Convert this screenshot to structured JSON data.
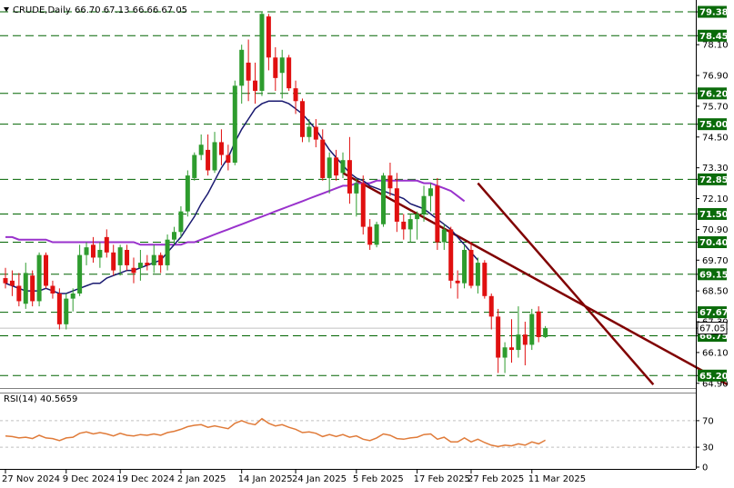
{
  "header": {
    "symbol": "CRUDE,Daily",
    "ohlc": "66.70 67.13 66.66 67.05"
  },
  "rsi_header": "RSI(14) 40.5659",
  "colors": {
    "bull": "#2e9c2e",
    "bear": "#e01010",
    "level_line": "#006400",
    "level_label_bg": "#0a6b0a",
    "last_label_bg": "#ffffff",
    "sma_fast": "#191970",
    "sma_slow": "#9932cc",
    "channel": "#800000",
    "rsi_line": "#e07b39",
    "grid": "#c0c0c0"
  },
  "chart_data": [
    {
      "type": "candlestick",
      "y_axis_ticks": [
        "79.38",
        "78.45",
        "78.10",
        "76.90",
        "76.20",
        "75.70",
        "75.00",
        "74.50",
        "73.30",
        "72.85",
        "72.10",
        "71.50",
        "70.90",
        "70.40",
        "69.70",
        "69.15",
        "68.50",
        "67.67",
        "67.30",
        "67.05",
        "66.75",
        "66.10",
        "65.20",
        "64.90"
      ],
      "ylim": [
        64.75,
        79.7
      ],
      "x_tick_labels": [
        "27 Nov 2024",
        "9 Dec 2024",
        "19 Dec 2024",
        "2 Jan 2025",
        "14 Jan 2025",
        "24 Jan 2025",
        "5 Feb 2025",
        "17 Feb 2025",
        "27 Feb 2025",
        "11 Mar 2025"
      ],
      "x_tick_bar_index": [
        0,
        9,
        17,
        26,
        35,
        43,
        52,
        61,
        69,
        78
      ],
      "horizontal_levels": [
        "79.38",
        "78.45",
        "76.20",
        "75.00",
        "72.85",
        "71.50",
        "70.40",
        "69.15",
        "67.67",
        "66.75",
        "65.20"
      ],
      "last_price": "67.05",
      "candles": [
        {
          "o": 69.0,
          "h": 69.4,
          "l": 68.6,
          "c": 68.8
        },
        {
          "o": 68.9,
          "h": 69.3,
          "l": 68.3,
          "c": 68.7
        },
        {
          "o": 68.7,
          "h": 69.2,
          "l": 67.9,
          "c": 68.1
        },
        {
          "o": 68.0,
          "h": 69.6,
          "l": 67.8,
          "c": 69.2
        },
        {
          "o": 69.1,
          "h": 69.3,
          "l": 67.9,
          "c": 68.1
        },
        {
          "o": 68.1,
          "h": 70.0,
          "l": 67.9,
          "c": 69.9
        },
        {
          "o": 69.9,
          "h": 70.0,
          "l": 68.6,
          "c": 68.7
        },
        {
          "o": 68.7,
          "h": 68.9,
          "l": 68.2,
          "c": 68.4
        },
        {
          "o": 68.4,
          "h": 68.6,
          "l": 67.0,
          "c": 67.2
        },
        {
          "o": 67.2,
          "h": 68.4,
          "l": 67.0,
          "c": 68.2
        },
        {
          "o": 68.2,
          "h": 68.6,
          "l": 67.7,
          "c": 68.4
        },
        {
          "o": 68.4,
          "h": 70.3,
          "l": 68.3,
          "c": 69.9
        },
        {
          "o": 69.9,
          "h": 70.4,
          "l": 69.5,
          "c": 70.2
        },
        {
          "o": 70.3,
          "h": 70.6,
          "l": 69.6,
          "c": 69.8
        },
        {
          "o": 69.8,
          "h": 70.4,
          "l": 69.4,
          "c": 70.1
        },
        {
          "o": 70.6,
          "h": 70.9,
          "l": 69.8,
          "c": 70.0
        },
        {
          "o": 70.0,
          "h": 70.3,
          "l": 69.1,
          "c": 69.3
        },
        {
          "o": 69.5,
          "h": 70.3,
          "l": 69.1,
          "c": 70.2
        },
        {
          "o": 70.1,
          "h": 70.3,
          "l": 69.3,
          "c": 69.5
        },
        {
          "o": 69.4,
          "h": 69.8,
          "l": 68.8,
          "c": 69.2
        },
        {
          "o": 69.4,
          "h": 70.1,
          "l": 68.9,
          "c": 69.6
        },
        {
          "o": 69.6,
          "h": 69.9,
          "l": 69.3,
          "c": 69.5
        },
        {
          "o": 69.5,
          "h": 70.3,
          "l": 69.2,
          "c": 69.9
        },
        {
          "o": 69.9,
          "h": 70.0,
          "l": 69.2,
          "c": 69.5
        },
        {
          "o": 69.5,
          "h": 70.7,
          "l": 69.3,
          "c": 70.5
        },
        {
          "o": 70.5,
          "h": 71.0,
          "l": 70.3,
          "c": 70.8
        },
        {
          "o": 70.8,
          "h": 71.8,
          "l": 70.6,
          "c": 71.6
        },
        {
          "o": 71.6,
          "h": 73.2,
          "l": 71.4,
          "c": 73.0
        },
        {
          "o": 72.9,
          "h": 73.9,
          "l": 72.8,
          "c": 73.8
        },
        {
          "o": 73.8,
          "h": 74.6,
          "l": 73.6,
          "c": 74.2
        },
        {
          "o": 74.0,
          "h": 74.6,
          "l": 73.0,
          "c": 73.2
        },
        {
          "o": 73.2,
          "h": 74.7,
          "l": 73.1,
          "c": 74.3
        },
        {
          "o": 74.3,
          "h": 74.8,
          "l": 73.4,
          "c": 73.8
        },
        {
          "o": 73.8,
          "h": 74.2,
          "l": 73.2,
          "c": 73.5
        },
        {
          "o": 73.5,
          "h": 76.7,
          "l": 73.4,
          "c": 76.5
        },
        {
          "o": 76.5,
          "h": 78.1,
          "l": 75.8,
          "c": 77.9
        },
        {
          "o": 77.4,
          "h": 78.3,
          "l": 75.9,
          "c": 76.7
        },
        {
          "o": 76.7,
          "h": 77.4,
          "l": 75.8,
          "c": 76.3
        },
        {
          "o": 76.3,
          "h": 79.4,
          "l": 76.1,
          "c": 79.3
        },
        {
          "o": 79.2,
          "h": 79.3,
          "l": 77.1,
          "c": 77.6
        },
        {
          "o": 77.6,
          "h": 78.0,
          "l": 76.3,
          "c": 76.8
        },
        {
          "o": 77.0,
          "h": 77.9,
          "l": 76.0,
          "c": 77.6
        },
        {
          "o": 77.6,
          "h": 77.7,
          "l": 76.3,
          "c": 76.4
        },
        {
          "o": 76.4,
          "h": 76.7,
          "l": 75.4,
          "c": 75.9
        },
        {
          "o": 75.9,
          "h": 76.0,
          "l": 74.3,
          "c": 74.5
        },
        {
          "o": 74.5,
          "h": 75.2,
          "l": 74.3,
          "c": 74.9
        },
        {
          "o": 74.9,
          "h": 75.2,
          "l": 74.1,
          "c": 74.4
        },
        {
          "o": 74.4,
          "h": 74.8,
          "l": 72.8,
          "c": 72.9
        },
        {
          "o": 72.9,
          "h": 73.9,
          "l": 72.3,
          "c": 73.7
        },
        {
          "o": 73.7,
          "h": 74.0,
          "l": 72.8,
          "c": 73.0
        },
        {
          "o": 73.1,
          "h": 73.9,
          "l": 72.9,
          "c": 73.6
        },
        {
          "o": 73.6,
          "h": 74.5,
          "l": 71.9,
          "c": 72.3
        },
        {
          "o": 72.3,
          "h": 72.9,
          "l": 71.4,
          "c": 72.7
        },
        {
          "o": 72.7,
          "h": 73.0,
          "l": 70.7,
          "c": 71.0
        },
        {
          "o": 71.0,
          "h": 71.3,
          "l": 70.1,
          "c": 70.3
        },
        {
          "o": 70.3,
          "h": 71.2,
          "l": 70.2,
          "c": 71.1
        },
        {
          "o": 71.1,
          "h": 73.1,
          "l": 71.0,
          "c": 73.0
        },
        {
          "o": 73.0,
          "h": 73.5,
          "l": 72.2,
          "c": 72.5
        },
        {
          "o": 72.5,
          "h": 73.1,
          "l": 70.8,
          "c": 71.2
        },
        {
          "o": 71.2,
          "h": 71.5,
          "l": 70.5,
          "c": 70.9
        },
        {
          "o": 70.9,
          "h": 71.5,
          "l": 70.4,
          "c": 71.3
        },
        {
          "o": 71.3,
          "h": 71.6,
          "l": 70.5,
          "c": 71.5
        },
        {
          "o": 71.5,
          "h": 72.6,
          "l": 71.2,
          "c": 72.2
        },
        {
          "o": 72.2,
          "h": 72.7,
          "l": 71.6,
          "c": 72.5
        },
        {
          "o": 72.6,
          "h": 72.9,
          "l": 70.1,
          "c": 70.4
        },
        {
          "o": 70.4,
          "h": 71.1,
          "l": 70.1,
          "c": 70.9
        },
        {
          "o": 70.9,
          "h": 71.0,
          "l": 68.6,
          "c": 68.9
        },
        {
          "o": 68.9,
          "h": 69.3,
          "l": 68.2,
          "c": 68.8
        },
        {
          "o": 68.8,
          "h": 70.3,
          "l": 68.6,
          "c": 70.1
        },
        {
          "o": 70.1,
          "h": 70.4,
          "l": 68.6,
          "c": 68.7
        },
        {
          "o": 68.7,
          "h": 69.8,
          "l": 68.4,
          "c": 69.6
        },
        {
          "o": 69.6,
          "h": 69.7,
          "l": 68.2,
          "c": 68.3
        },
        {
          "o": 68.3,
          "h": 68.4,
          "l": 67.0,
          "c": 67.5
        },
        {
          "o": 67.5,
          "h": 67.8,
          "l": 65.3,
          "c": 65.9
        },
        {
          "o": 65.9,
          "h": 66.5,
          "l": 65.3,
          "c": 66.3
        },
        {
          "o": 66.3,
          "h": 67.4,
          "l": 65.7,
          "c": 66.2
        },
        {
          "o": 66.2,
          "h": 67.9,
          "l": 65.9,
          "c": 66.8
        },
        {
          "o": 66.8,
          "h": 67.3,
          "l": 65.6,
          "c": 66.4
        },
        {
          "o": 66.4,
          "h": 67.8,
          "l": 66.2,
          "c": 67.6
        },
        {
          "o": 67.7,
          "h": 67.9,
          "l": 66.5,
          "c": 66.7
        },
        {
          "o": 66.7,
          "h": 67.13,
          "l": 66.66,
          "c": 67.05
        }
      ],
      "sma_fast": [
        68.8,
        68.7,
        68.6,
        68.5,
        68.5,
        68.5,
        68.6,
        68.5,
        68.4,
        68.4,
        68.5,
        68.6,
        68.7,
        68.8,
        68.8,
        69.0,
        69.1,
        69.2,
        69.3,
        69.3,
        69.4,
        69.5,
        69.6,
        69.7,
        70.0,
        70.3,
        70.6,
        71.0,
        71.4,
        71.9,
        72.3,
        72.8,
        73.3,
        73.7,
        74.3,
        74.8,
        75.2,
        75.6,
        75.8,
        75.9,
        75.9,
        75.9,
        75.8,
        75.6,
        75.4,
        75.1,
        74.8,
        74.4,
        74.0,
        73.7,
        73.4,
        73.1,
        72.9,
        72.8,
        72.6,
        72.5,
        72.4,
        72.3,
        72.2,
        72.1,
        71.9,
        71.8,
        71.7,
        71.5,
        71.3,
        71.1,
        70.9,
        70.6,
        70.3,
        70.0,
        69.7
      ],
      "sma_slow": [
        70.6,
        70.6,
        70.5,
        70.5,
        70.5,
        70.5,
        70.5,
        70.4,
        70.4,
        70.4,
        70.4,
        70.4,
        70.4,
        70.4,
        70.4,
        70.4,
        70.4,
        70.4,
        70.4,
        70.4,
        70.3,
        70.3,
        70.3,
        70.3,
        70.3,
        70.3,
        70.3,
        70.4,
        70.4,
        70.5,
        70.6,
        70.7,
        70.8,
        70.9,
        71.0,
        71.1,
        71.2,
        71.3,
        71.4,
        71.5,
        71.6,
        71.7,
        71.8,
        71.9,
        72.0,
        72.1,
        72.2,
        72.3,
        72.4,
        72.5,
        72.6,
        72.6,
        72.7,
        72.7,
        72.7,
        72.8,
        72.8,
        72.8,
        72.8,
        72.8,
        72.8,
        72.8,
        72.7,
        72.7,
        72.6,
        72.5,
        72.4,
        72.2,
        72.0
      ],
      "channel_lines": [
        {
          "from": {
            "bar": 50,
            "price": 73.1
          },
          "to": {
            "bar": 107,
            "price": 64.85
          }
        },
        {
          "from": {
            "bar": 70,
            "price": 72.7
          },
          "to": {
            "bar": 96,
            "price": 64.85
          }
        }
      ]
    },
    {
      "type": "line",
      "title": "RSI(14) 40.5659",
      "y_ticks": [
        "70",
        "30",
        "0"
      ],
      "ylim": [
        0,
        100
      ],
      "levels": [
        70,
        30
      ],
      "values": [
        47,
        46,
        44,
        45,
        43,
        48,
        44,
        43,
        40,
        44,
        45,
        51,
        53,
        50,
        52,
        50,
        47,
        51,
        48,
        47,
        49,
        48,
        50,
        48,
        52,
        54,
        57,
        61,
        63,
        64,
        60,
        62,
        60,
        58,
        66,
        70,
        66,
        64,
        73,
        66,
        62,
        64,
        60,
        57,
        52,
        53,
        51,
        46,
        49,
        46,
        49,
        45,
        47,
        42,
        40,
        44,
        50,
        48,
        43,
        42,
        44,
        45,
        49,
        50,
        42,
        45,
        38,
        38,
        44,
        38,
        42,
        37,
        33,
        31,
        33,
        32,
        35,
        33,
        38,
        35,
        40.5659
      ]
    }
  ]
}
